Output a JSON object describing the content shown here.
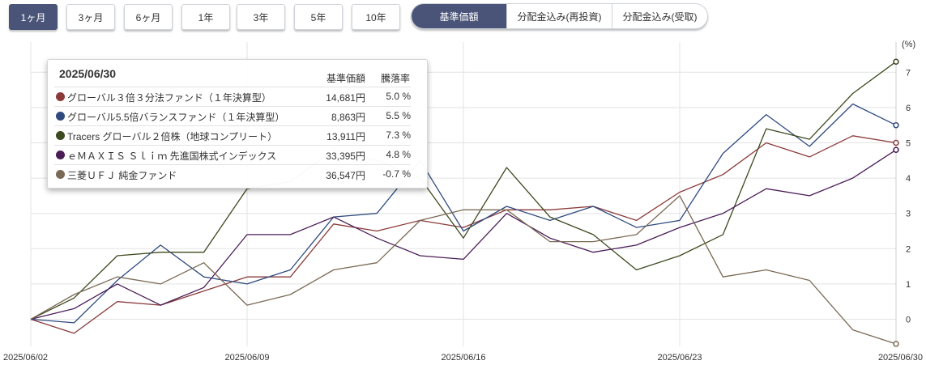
{
  "periods": {
    "btn_1m": "1ヶ月",
    "btn_3m": "3ヶ月",
    "btn_6m": "6ヶ月",
    "btn_1y": "1年",
    "btn_3y": "3年",
    "btn_5y": "5年",
    "btn_10y": "10年",
    "active": "1ヶ月"
  },
  "modes": {
    "nav": "基準価額",
    "reinvest": "分配金込み(再投資)",
    "received": "分配金込み(受取)",
    "active": "基準価額"
  },
  "tooltip": {
    "date": "2025/06/30",
    "col_price": "基準価額",
    "col_change": "騰落率",
    "rows": [
      {
        "name": "グローバル３倍３分法ファンド（１年決算型）",
        "price": "14,681円",
        "change": "5.0 %",
        "color": "#8b3a3a"
      },
      {
        "name": "グローバル5.5倍バランスファンド（１年決算型）",
        "price": "8,863円",
        "change": "5.5 %",
        "color": "#2f4a7f"
      },
      {
        "name": "Tracers グローバル２倍株（地球コンプリート）",
        "price": "13,911円",
        "change": "7.3 %",
        "color": "#3c4a1e"
      },
      {
        "name": "ｅＭＡＸＩＳ Ｓｌｉｍ 先進国株式インデックス",
        "price": "33,395円",
        "change": "4.8 %",
        "color": "#4b1d57"
      },
      {
        "name": "三菱ＵＦＪ 純金ファンド",
        "price": "36,547円",
        "change": "-0.7 %",
        "color": "#7a6a55"
      }
    ]
  },
  "chart_data": {
    "type": "line",
    "y_unit": "(%)",
    "ylim": [
      -0.7,
      7.6
    ],
    "yticks": [
      "0",
      "1",
      "2",
      "3",
      "4",
      "5",
      "6",
      "7"
    ],
    "x_tick_labels": [
      "2025/06/02",
      "2025/06/09",
      "2025/06/16",
      "2025/06/23",
      "2025/06/30"
    ],
    "x": [
      "06/02",
      "06/03",
      "06/04",
      "06/05",
      "06/06",
      "06/09",
      "06/10",
      "06/11",
      "06/12",
      "06/13",
      "06/16",
      "06/17",
      "06/18",
      "06/19",
      "06/20",
      "06/23",
      "06/24",
      "06/25",
      "06/26",
      "06/27",
      "06/30"
    ],
    "grid": true,
    "series": [
      {
        "name": "グローバル３倍３分法ファンド（１年決算型）",
        "color": "#8b3a3a",
        "values": [
          0,
          -0.4,
          0.5,
          0.4,
          0.8,
          1.2,
          1.2,
          2.7,
          2.5,
          2.8,
          2.6,
          3.1,
          3.1,
          3.2,
          2.8,
          3.6,
          4.1,
          5.0,
          4.6,
          5.2,
          5.0
        ]
      },
      {
        "name": "グローバル5.5倍バランスファンド（１年決算型）",
        "color": "#2f4a7f",
        "values": [
          0,
          -0.1,
          1.1,
          2.1,
          1.2,
          1.0,
          1.4,
          2.9,
          3.0,
          4.5,
          2.5,
          3.2,
          2.8,
          3.2,
          2.6,
          2.8,
          4.7,
          5.8,
          4.9,
          6.1,
          5.5
        ]
      },
      {
        "name": "Tracers グローバル２倍株（地球コンプリート）",
        "color": "#3c4a1e",
        "values": [
          0,
          0.6,
          1.8,
          1.9,
          1.9,
          3.7,
          3.9,
          4.8,
          4.5,
          4.0,
          2.3,
          4.3,
          2.9,
          2.4,
          1.4,
          1.8,
          2.4,
          5.4,
          5.1,
          6.4,
          7.3
        ]
      },
      {
        "name": "ｅＭＡＸＩＳ Ｓｌｉｍ 先進国株式インデックス",
        "color": "#4b1d57",
        "values": [
          0,
          0.3,
          1.0,
          0.4,
          0.9,
          2.4,
          2.4,
          2.9,
          2.3,
          1.8,
          1.7,
          3.0,
          2.3,
          1.9,
          2.1,
          2.6,
          3.0,
          3.7,
          3.5,
          4.0,
          4.8
        ]
      },
      {
        "name": "三菱ＵＦＪ 純金ファンド",
        "color": "#7a6a55",
        "values": [
          0,
          0.7,
          1.2,
          1.0,
          1.6,
          0.4,
          0.7,
          1.4,
          1.6,
          2.8,
          3.1,
          3.1,
          2.2,
          2.2,
          2.4,
          3.5,
          1.2,
          1.4,
          1.1,
          -0.3,
          -0.7
        ]
      }
    ]
  }
}
